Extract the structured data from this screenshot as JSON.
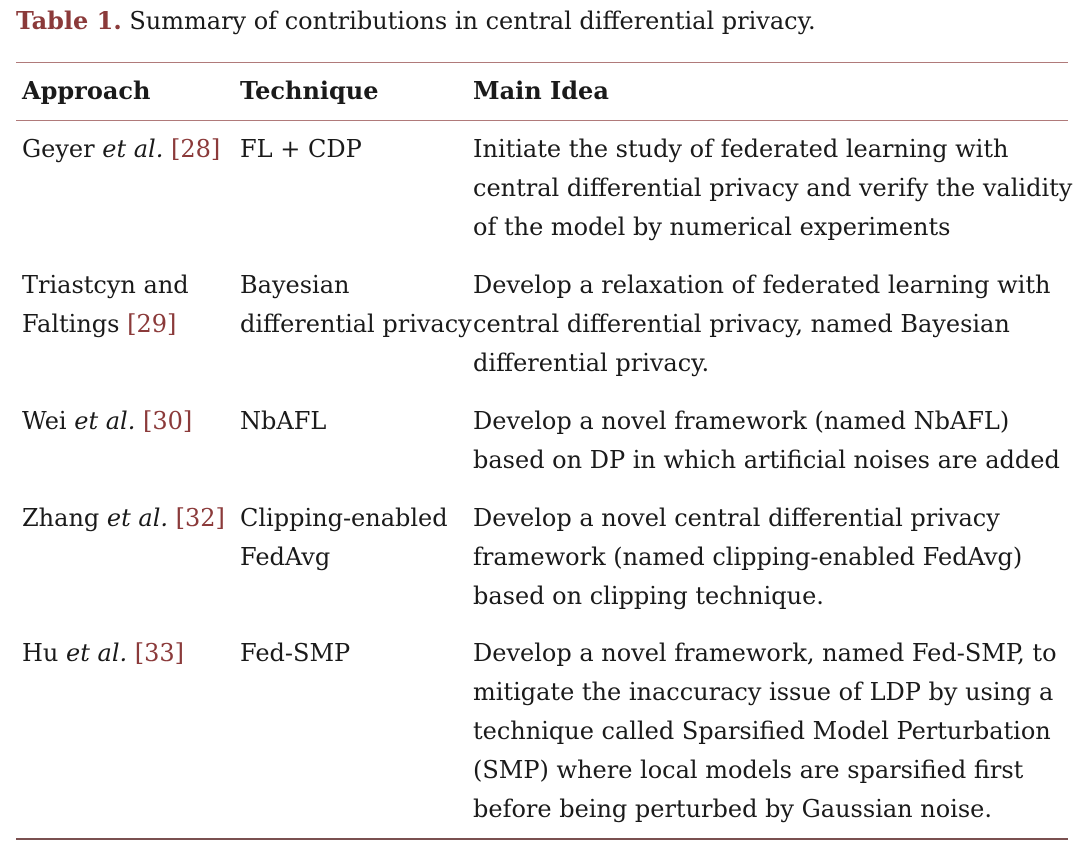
{
  "caption": {
    "label": "Table 1.",
    "text": "Summary of contributions in central differential privacy."
  },
  "headers": {
    "approach": "Approach",
    "technique": "Technique",
    "main_idea": "Main Idea"
  },
  "rows": [
    {
      "approach_author": "Geyer",
      "approach_etal": "et al.",
      "approach_ref": "[28]",
      "technique_lines": [
        "FL + CDP"
      ],
      "idea_lines": [
        "Initiate the study of federated learning with",
        "central differential privacy and verify the validity",
        "of the model by numerical experiments"
      ]
    },
    {
      "approach_line1": "Triastcyn and",
      "approach_line2": "Faltings",
      "approach_ref": "[29]",
      "technique_lines": [
        "Bayesian",
        "differential privacy"
      ],
      "idea_lines": [
        "Develop a relaxation of federated learning with",
        "central differential privacy, named Bayesian",
        "differential privacy."
      ]
    },
    {
      "approach_author": "Wei",
      "approach_etal": "et al.",
      "approach_ref": "[30]",
      "technique_lines": [
        "NbAFL"
      ],
      "idea_lines": [
        "Develop a novel framework (named NbAFL)",
        "based on DP in which artificial noises are added"
      ]
    },
    {
      "approach_author": "Zhang",
      "approach_etal": "et al.",
      "approach_ref": "[32]",
      "technique_lines": [
        "Clipping-enabled",
        "FedAvg"
      ],
      "idea_lines": [
        "Develop a novel central differential privacy",
        "framework (named clipping-enabled FedAvg)",
        "based on clipping technique."
      ]
    },
    {
      "approach_author": "Hu",
      "approach_etal": "et al.",
      "approach_ref": "[33]",
      "technique_lines": [
        "Fed-SMP"
      ],
      "idea_lines": [
        "Develop a novel framework, named Fed-SMP, to",
        "mitigate the inaccuracy issue of LDP by using a",
        "technique called Sparsified Model Perturbation",
        "(SMP) where local models are sparsified first",
        "before being perturbed by Gaussian noise."
      ]
    }
  ]
}
